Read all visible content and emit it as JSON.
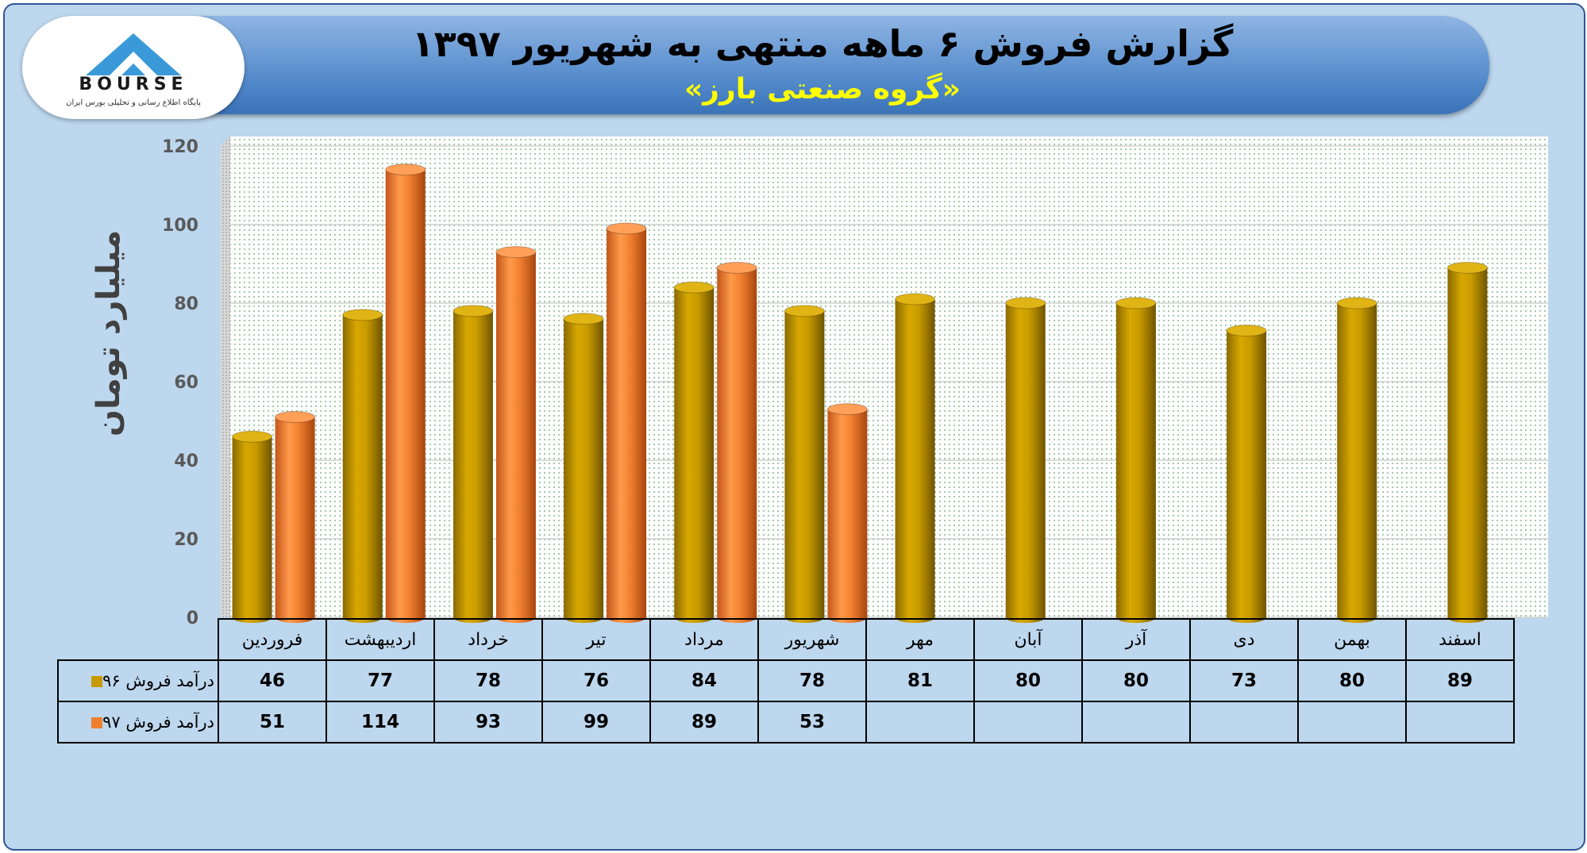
{
  "header": {
    "title": "گزارش فروش ۶ ماهه منتهی به شهریور ۱۳۹۷",
    "subtitle": "«گروه صنعتی بارز»"
  },
  "logo": {
    "text": "BOURSE",
    "subtext": "پایگاه اطلاع رسانی و تحلیلی بورس ایران"
  },
  "colors": {
    "series96": "#c79a00",
    "series97": "#f08030"
  },
  "chart_data": {
    "type": "bar",
    "title": "گزارش فروش ۶ ماهه منتهی به شهریور ۱۳۹۷",
    "subtitle": "«گروه صنعتی بارز»",
    "ylabel": "میلیارد تومان",
    "ylim": [
      0,
      120
    ],
    "yticks": [
      0,
      20,
      40,
      60,
      80,
      100,
      120
    ],
    "grid": true,
    "categories": [
      "فروردین",
      "اردیبهشت",
      "خرداد",
      "تیر",
      "مرداد",
      "شهریور",
      "مهر",
      "آبان",
      "آذر",
      "دی",
      "بهمن",
      "اسفند"
    ],
    "series": [
      {
        "name": "درآمد فروش ۹۶",
        "values": [
          46,
          77,
          78,
          76,
          84,
          78,
          81,
          80,
          80,
          73,
          80,
          89
        ]
      },
      {
        "name": "درآمد فروش ۹۷",
        "values": [
          51,
          114,
          93,
          99,
          89,
          53,
          null,
          null,
          null,
          null,
          null,
          null
        ]
      }
    ],
    "data_table": true
  }
}
